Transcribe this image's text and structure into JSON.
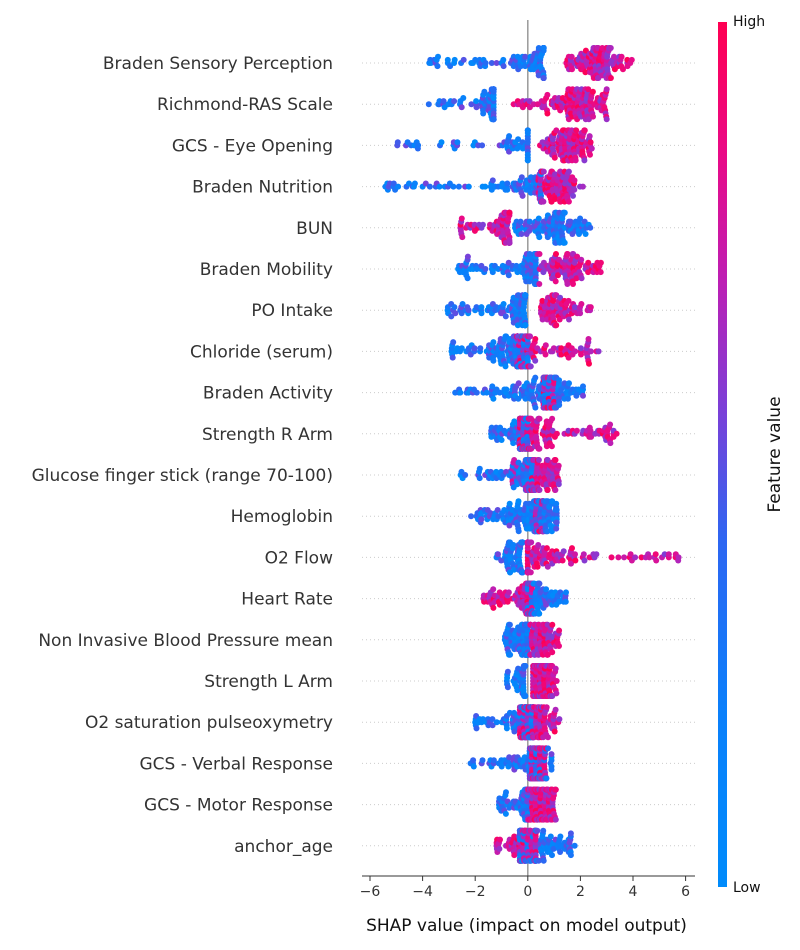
{
  "chart_data": {
    "type": "scatter",
    "subtype": "shap-beeswarm",
    "xlabel": "SHAP value (impact on model output)",
    "xticks": [
      -6,
      -4,
      -2,
      0,
      2,
      4,
      6
    ],
    "xlim": [
      -6.2,
      6.3
    ],
    "colorbar": {
      "label": "Feature value",
      "high": "High",
      "low": "Low",
      "color_low": "#008bfb",
      "color_high": "#ff0052"
    },
    "grid": false,
    "features": [
      {
        "name": "Braden Sensory Perception",
        "lowMin": -3.8,
        "lowMax": 0.6,
        "highMin": 1.4,
        "highMax": 4.0,
        "split": 0.5,
        "core": 2.6,
        "n": 230
      },
      {
        "name": "Richmond-RAS Scale",
        "lowMin": -3.8,
        "lowMax": -1.3,
        "highMin": -0.6,
        "highMax": 3.0,
        "split": 0.35,
        "core": 2.0,
        "n": 200
      },
      {
        "name": "GCS - Eye Opening",
        "lowMin": -5.1,
        "lowMax": 0.0,
        "highMin": 0.4,
        "highMax": 2.5,
        "split": 0.35,
        "core": 1.6,
        "n": 170
      },
      {
        "name": "Braden Nutrition",
        "lowMin": -5.6,
        "lowMax": 0.5,
        "highMin": 0.4,
        "highMax": 2.1,
        "split": 0.55,
        "core": 1.0,
        "n": 200
      },
      {
        "name": "BUN",
        "lowMin": -0.5,
        "lowMax": 2.5,
        "highMin": -2.6,
        "highMax": -0.7,
        "split": 0.6,
        "core": 1.1,
        "n": 200
      },
      {
        "name": "Braden Mobility",
        "lowMin": -2.7,
        "lowMax": 0.3,
        "highMin": 0.3,
        "highMax": 2.8,
        "split": 0.5,
        "core": 1.5,
        "n": 200
      },
      {
        "name": "PO Intake",
        "lowMin": -3.1,
        "lowMax": -0.1,
        "highMin": 0.5,
        "highMax": 2.4,
        "split": 0.55,
        "core": 0.9,
        "n": 190
      },
      {
        "name": "Chloride (serum)",
        "lowMin": -2.9,
        "lowMax": 0.0,
        "highMin": -0.4,
        "highMax": 2.9,
        "split": 0.5,
        "core": -0.6,
        "n": 240
      },
      {
        "name": "Braden Activity",
        "lowMin": -2.8,
        "lowMax": 2.1,
        "highMin": 0.6,
        "highMax": 1.0,
        "split": 0.85,
        "core": 0.9,
        "n": 180
      },
      {
        "name": "Strength R Arm",
        "lowMin": -1.4,
        "lowMax": 0.0,
        "highMin": -0.3,
        "highMax": 3.5,
        "split": 0.3,
        "core": 0.0,
        "n": 230
      },
      {
        "name": "Glucose finger stick (range 70-100)",
        "lowMin": -2.7,
        "lowMax": 0.2,
        "highMin": -0.6,
        "highMax": 1.2,
        "split": 0.5,
        "core": 0.5,
        "n": 200
      },
      {
        "name": "Hemoglobin",
        "lowMin": -2.2,
        "lowMax": 1.1,
        "highMin": 0.3,
        "highMax": 0.6,
        "split": 0.85,
        "core": 0.5,
        "n": 190
      },
      {
        "name": "O2 Flow",
        "lowMin": -1.2,
        "lowMax": -0.2,
        "highMin": 0.0,
        "highMax": 5.8,
        "split": 0.35,
        "core": -0.3,
        "n": 190
      },
      {
        "name": "Heart Rate",
        "lowMin": 0.0,
        "lowMax": 1.5,
        "highMin": -1.8,
        "highMax": 0.2,
        "split": 0.35,
        "core": 0.4,
        "n": 210
      },
      {
        "name": "Non Invasive Blood Pressure mean",
        "lowMin": -0.9,
        "lowMax": 0.0,
        "highMin": 0.1,
        "highMax": 1.2,
        "split": 0.5,
        "core": 0.4,
        "n": 200
      },
      {
        "name": "Strength L Arm",
        "lowMin": -0.8,
        "lowMax": -0.1,
        "highMin": 0.2,
        "highMax": 1.1,
        "split": 0.3,
        "core": 0.4,
        "n": 200
      },
      {
        "name": "O2 saturation pulseoxymetry",
        "lowMin": -2.0,
        "lowMax": 0.2,
        "highMin": -0.3,
        "highMax": 1.3,
        "split": 0.5,
        "core": 0.2,
        "n": 220
      },
      {
        "name": "GCS - Verbal Response",
        "lowMin": -2.2,
        "lowMax": 0.9,
        "highMin": 0.1,
        "highMax": 0.7,
        "split": 0.55,
        "core": 0.4,
        "n": 190
      },
      {
        "name": "GCS - Motor Response",
        "lowMin": -1.1,
        "lowMax": 0.0,
        "highMin": 0.0,
        "highMax": 1.1,
        "split": 0.3,
        "core": 0.4,
        "n": 210
      },
      {
        "name": "anchor_age",
        "lowMin": -0.3,
        "lowMax": 1.8,
        "highMin": -1.2,
        "highMax": 0.3,
        "split": 0.5,
        "core": 0.0,
        "n": 200
      }
    ]
  }
}
